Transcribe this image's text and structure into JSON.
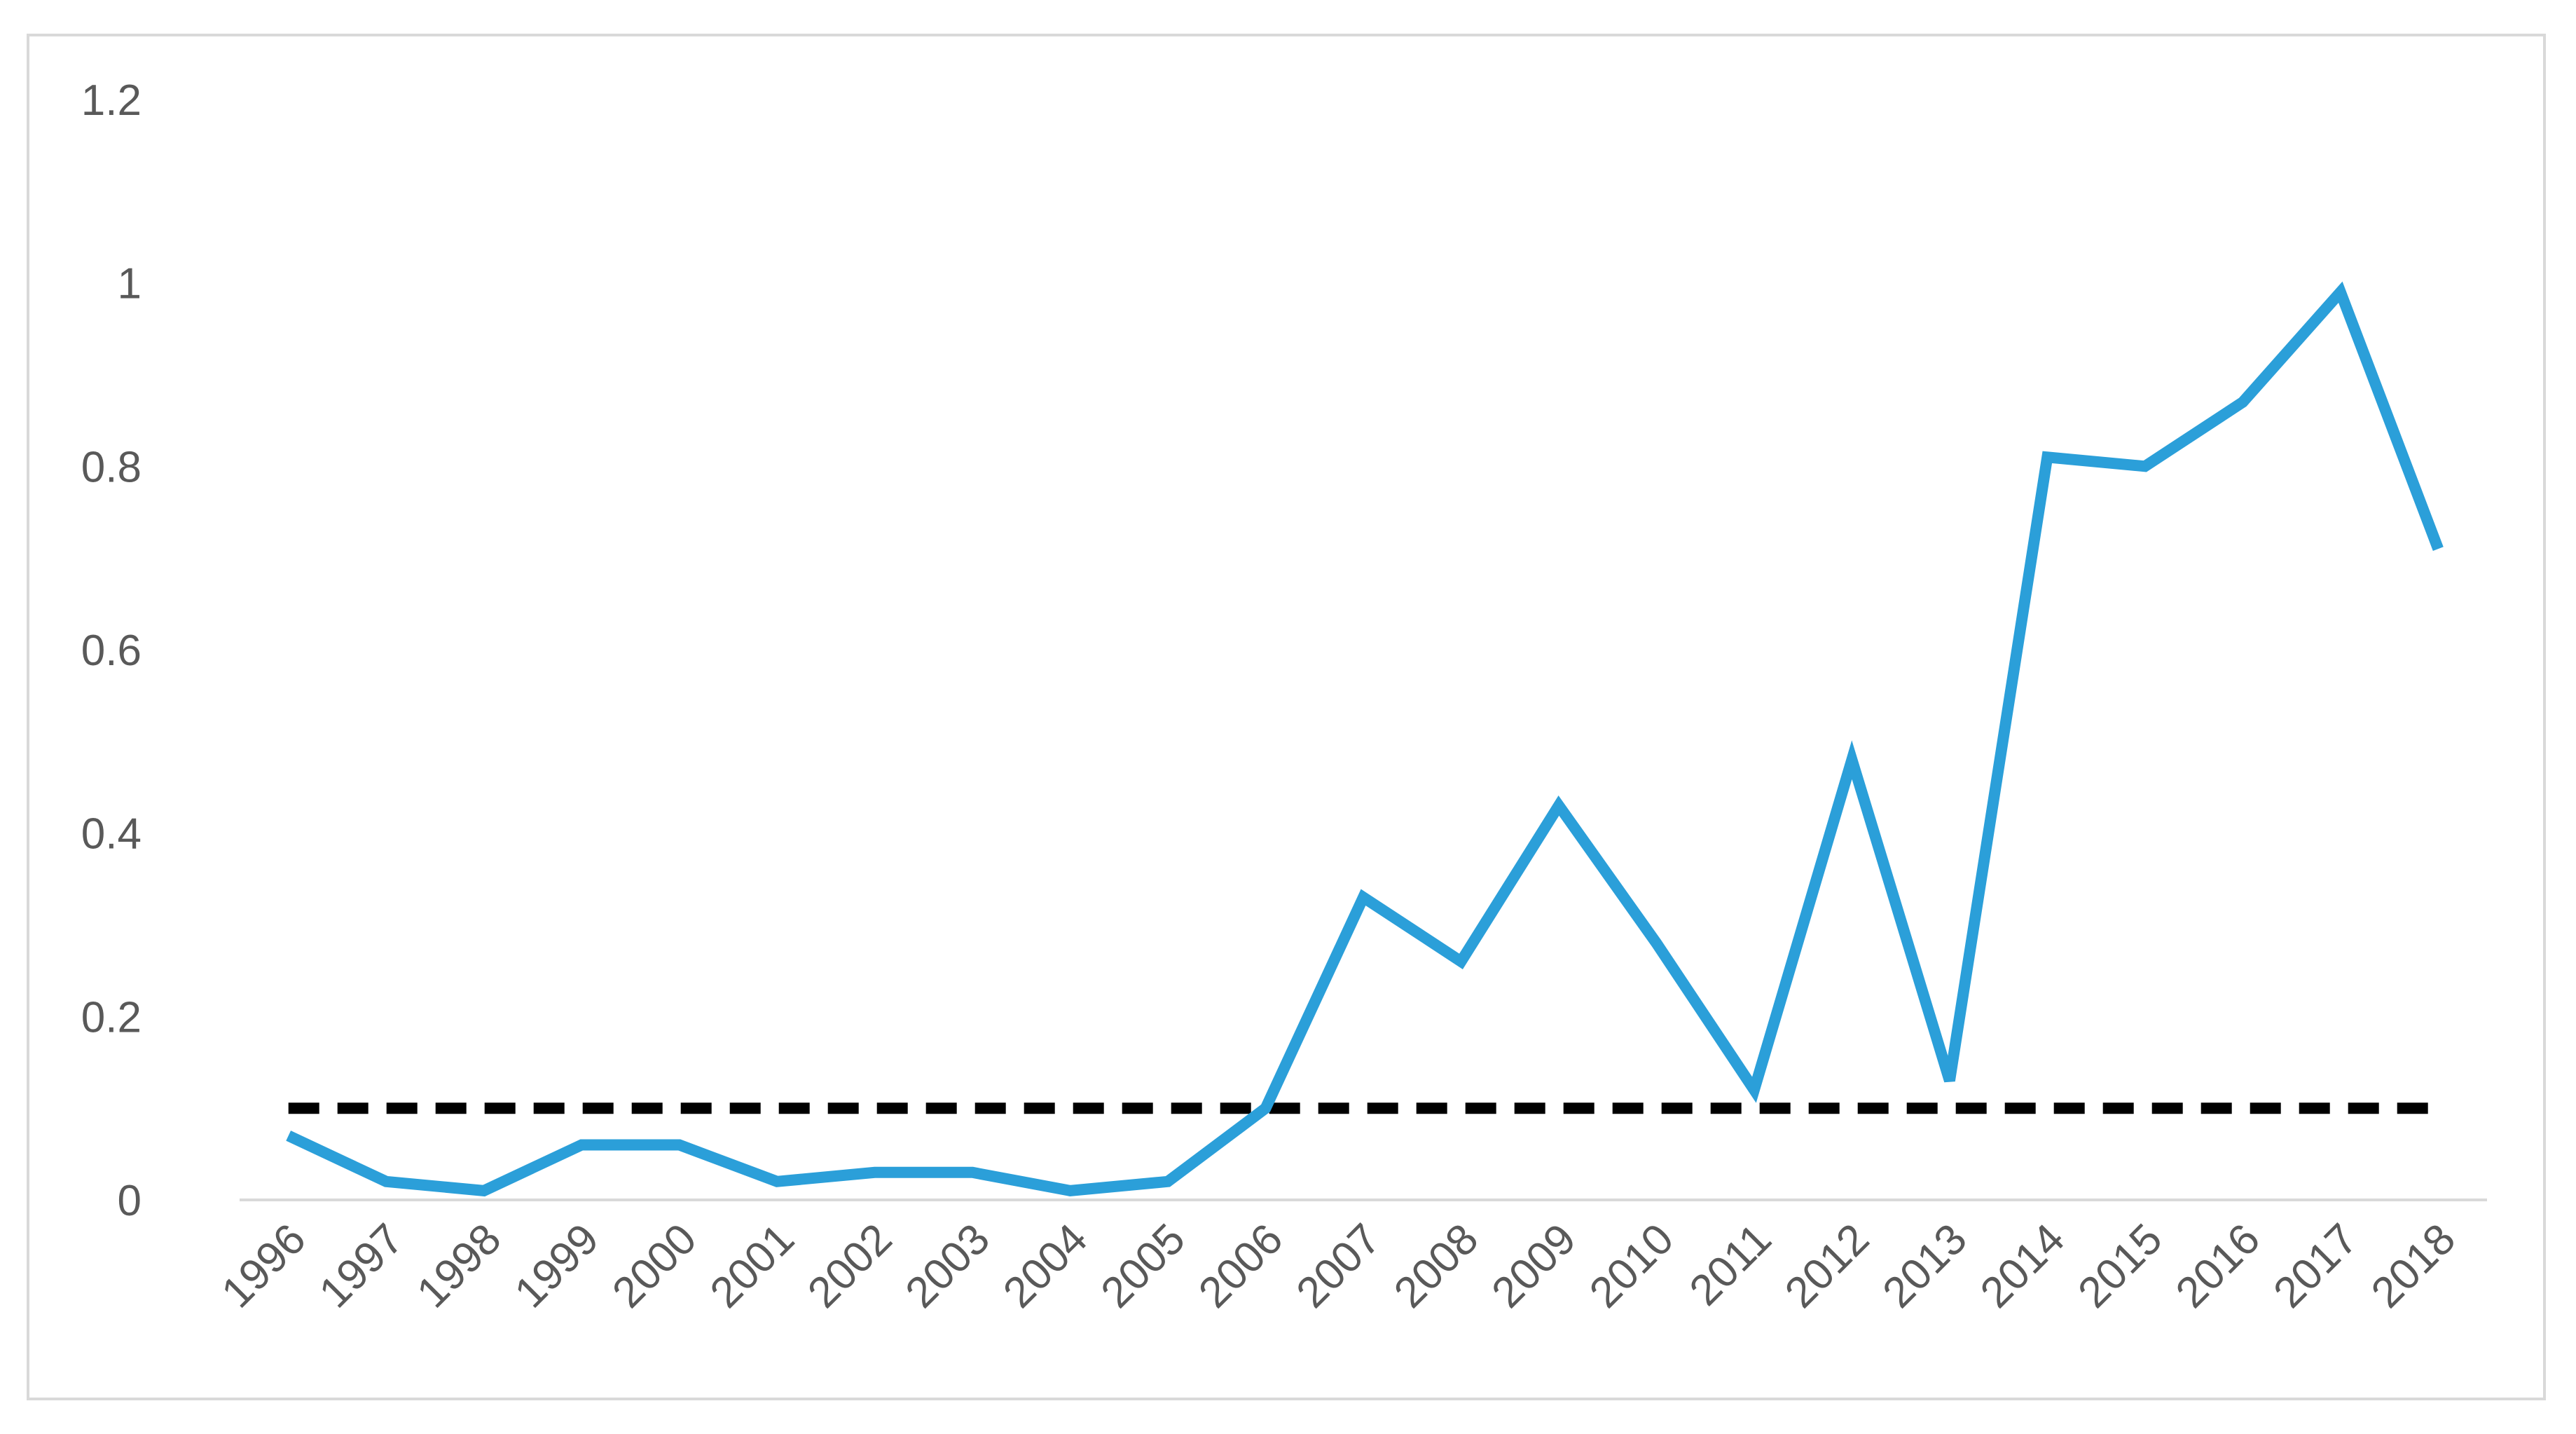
{
  "chart_data": {
    "type": "line",
    "title": "",
    "xlabel": "",
    "ylabel": "",
    "x": [
      "1996",
      "1997",
      "1998",
      "1999",
      "2000",
      "2001",
      "2002",
      "2003",
      "2004",
      "2005",
      "2006",
      "2007",
      "2008",
      "2009",
      "2010",
      "2011",
      "2012",
      "2013",
      "2014",
      "2015",
      "2016",
      "2017",
      "2018"
    ],
    "series": [
      {
        "style": "solid",
        "color": "#2B9FD9",
        "values": [
          0.07,
          0.02,
          0.01,
          0.06,
          0.06,
          0.02,
          0.03,
          0.03,
          0.01,
          0.02,
          0.1,
          0.33,
          0.26,
          0.43,
          0.28,
          0.12,
          0.48,
          0.13,
          0.81,
          0.8,
          0.87,
          0.99,
          0.71
        ]
      },
      {
        "style": "dashed",
        "color": "#000000",
        "values": [
          0.1,
          0.1,
          0.1,
          0.1,
          0.1,
          0.1,
          0.1,
          0.1,
          0.1,
          0.1,
          0.1,
          0.1,
          0.1,
          0.1,
          0.1,
          0.1,
          0.1,
          0.1,
          0.1,
          0.1,
          0.1,
          0.1,
          0.1
        ]
      }
    ],
    "ylim": [
      0,
      1.2
    ],
    "yticks": [
      "0",
      "0.2",
      "0.4",
      "0.6",
      "0.8",
      "1",
      "1.2"
    ],
    "grid": false,
    "legend": false
  }
}
